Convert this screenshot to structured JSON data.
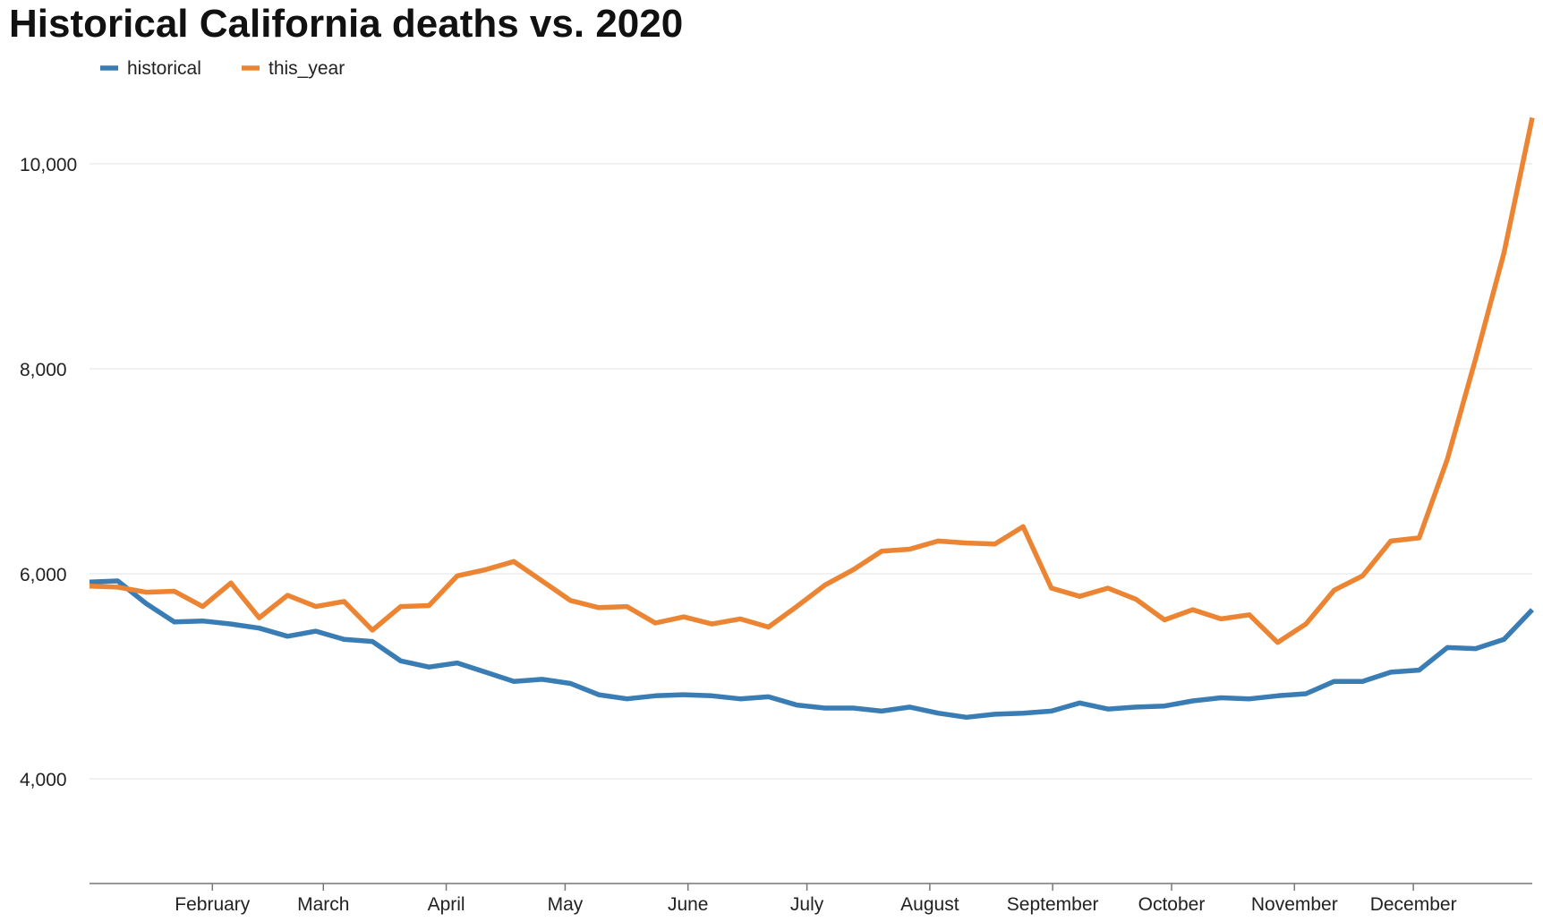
{
  "chart_data": {
    "type": "line",
    "title": "Historical California deaths vs. 2020",
    "xlabel": "",
    "ylabel": "",
    "ylim": [
      3000,
      10500
    ],
    "yticks": [
      4000,
      6000,
      8000,
      10000
    ],
    "ytick_labels": [
      "4,000",
      "6,000",
      "8,000",
      "10,000"
    ],
    "xticks": [
      "February",
      "March",
      "April",
      "May",
      "June",
      "July",
      "August",
      "September",
      "October",
      "November",
      "December"
    ],
    "x_unit": "week",
    "grid": "horizontal",
    "legend": "top-left",
    "series": [
      {
        "name": "historical",
        "color": "#3a7db5",
        "values": [
          5920,
          5930,
          5710,
          5530,
          5540,
          5510,
          5470,
          5390,
          5440,
          5360,
          5340,
          5150,
          5090,
          5130,
          5040,
          4950,
          4970,
          4930,
          4820,
          4780,
          4810,
          4820,
          4810,
          4780,
          4800,
          4720,
          4690,
          4690,
          4660,
          4700,
          4640,
          4600,
          4630,
          4640,
          4660,
          4740,
          4680,
          4700,
          4710,
          4760,
          4790,
          4780,
          4810,
          4830,
          4950,
          4950,
          5040,
          5060,
          5280,
          5270,
          5360,
          5650
        ]
      },
      {
        "name": "this_year",
        "color": "#ec8533",
        "values": [
          5880,
          5870,
          5820,
          5830,
          5680,
          5910,
          5570,
          5790,
          5680,
          5730,
          5450,
          5680,
          5690,
          5980,
          6040,
          6120,
          5930,
          5740,
          5670,
          5680,
          5520,
          5580,
          5510,
          5560,
          5480,
          5680,
          5890,
          6040,
          6220,
          6240,
          6320,
          6300,
          6290,
          6460,
          5860,
          5780,
          5860,
          5750,
          5550,
          5650,
          5560,
          5600,
          5330,
          5510,
          5840,
          5980,
          6320,
          6350,
          7120,
          8100,
          9130,
          10450
        ]
      }
    ]
  }
}
